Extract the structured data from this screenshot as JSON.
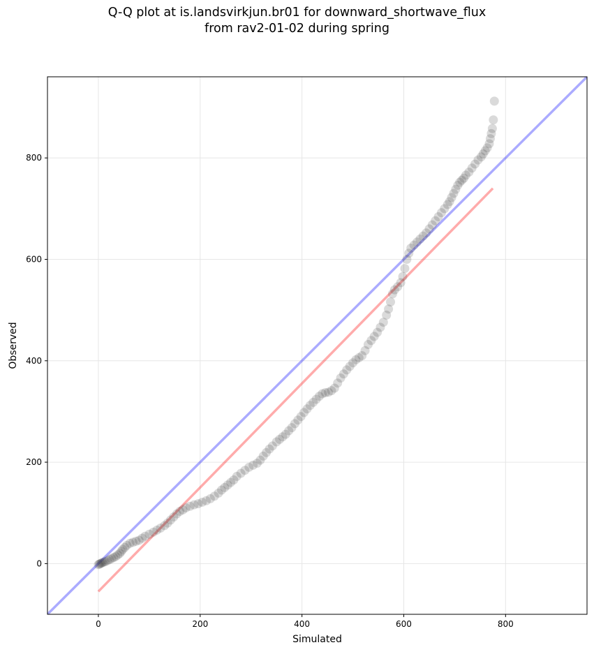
{
  "title_line1": "Q-Q plot at is.landsvirkjun.br01 for downward_shortwave_flux",
  "title_line2": "from rav2-01-02 during spring",
  "chart_data": {
    "type": "scatter",
    "xlabel": "Simulated",
    "ylabel": "Observed",
    "xlim": [
      -100,
      960
    ],
    "ylim": [
      -100,
      960
    ],
    "xticks": [
      "0",
      "200",
      "400",
      "600",
      "800"
    ],
    "yticks": [
      "0",
      "200",
      "400",
      "600",
      "800"
    ],
    "grid": true,
    "reference_lines": [
      {
        "name": "1:1 line",
        "color": "#0000ff",
        "x": [
          -100,
          960
        ],
        "y": [
          -100,
          960
        ]
      },
      {
        "name": "fit line",
        "color": "#ff0000",
        "x": [
          0,
          775
        ],
        "y": [
          -55,
          740
        ]
      }
    ],
    "marker_color": "#333333",
    "points": [
      [
        0,
        -2
      ],
      [
        2,
        -1
      ],
      [
        4,
        0
      ],
      [
        6,
        1
      ],
      [
        8,
        2
      ],
      [
        11,
        3
      ],
      [
        14,
        4
      ],
      [
        18,
        6
      ],
      [
        22,
        8
      ],
      [
        26,
        10
      ],
      [
        30,
        12
      ],
      [
        34,
        14
      ],
      [
        38,
        17
      ],
      [
        42,
        20
      ],
      [
        45,
        24
      ],
      [
        48,
        28
      ],
      [
        52,
        32
      ],
      [
        56,
        36
      ],
      [
        62,
        40
      ],
      [
        68,
        42
      ],
      [
        74,
        44
      ],
      [
        80,
        46
      ],
      [
        86,
        50
      ],
      [
        92,
        54
      ],
      [
        100,
        58
      ],
      [
        108,
        62
      ],
      [
        115,
        66
      ],
      [
        122,
        70
      ],
      [
        130,
        75
      ],
      [
        136,
        80
      ],
      [
        142,
        86
      ],
      [
        148,
        92
      ],
      [
        154,
        98
      ],
      [
        160,
        103
      ],
      [
        166,
        106
      ],
      [
        172,
        110
      ],
      [
        180,
        113
      ],
      [
        188,
        116
      ],
      [
        196,
        118
      ],
      [
        204,
        121
      ],
      [
        212,
        124
      ],
      [
        220,
        128
      ],
      [
        228,
        133
      ],
      [
        236,
        139
      ],
      [
        242,
        145
      ],
      [
        248,
        150
      ],
      [
        254,
        155
      ],
      [
        260,
        160
      ],
      [
        266,
        165
      ],
      [
        272,
        172
      ],
      [
        280,
        178
      ],
      [
        288,
        184
      ],
      [
        296,
        190
      ],
      [
        304,
        194
      ],
      [
        312,
        198
      ],
      [
        318,
        204
      ],
      [
        324,
        212
      ],
      [
        330,
        219
      ],
      [
        336,
        226
      ],
      [
        342,
        232
      ],
      [
        350,
        240
      ],
      [
        356,
        245
      ],
      [
        362,
        250
      ],
      [
        368,
        255
      ],
      [
        374,
        262
      ],
      [
        380,
        268
      ],
      [
        386,
        276
      ],
      [
        392,
        283
      ],
      [
        398,
        290
      ],
      [
        404,
        298
      ],
      [
        410,
        305
      ],
      [
        416,
        312
      ],
      [
        422,
        318
      ],
      [
        428,
        324
      ],
      [
        434,
        330
      ],
      [
        440,
        335
      ],
      [
        446,
        337
      ],
      [
        452,
        338
      ],
      [
        458,
        341
      ],
      [
        464,
        346
      ],
      [
        470,
        356
      ],
      [
        476,
        366
      ],
      [
        482,
        374
      ],
      [
        488,
        382
      ],
      [
        494,
        389
      ],
      [
        500,
        396
      ],
      [
        506,
        402
      ],
      [
        512,
        406
      ],
      [
        518,
        410
      ],
      [
        524,
        420
      ],
      [
        530,
        432
      ],
      [
        536,
        440
      ],
      [
        542,
        448
      ],
      [
        548,
        456
      ],
      [
        554,
        466
      ],
      [
        560,
        476
      ],
      [
        566,
        490
      ],
      [
        570,
        502
      ],
      [
        574,
        516
      ],
      [
        578,
        532
      ],
      [
        582,
        540
      ],
      [
        588,
        546
      ],
      [
        594,
        554
      ],
      [
        598,
        566
      ],
      [
        602,
        582
      ],
      [
        606,
        600
      ],
      [
        610,
        612
      ],
      [
        614,
        622
      ],
      [
        620,
        628
      ],
      [
        626,
        634
      ],
      [
        632,
        640
      ],
      [
        638,
        646
      ],
      [
        644,
        652
      ],
      [
        650,
        660
      ],
      [
        656,
        668
      ],
      [
        662,
        676
      ],
      [
        668,
        684
      ],
      [
        674,
        692
      ],
      [
        680,
        700
      ],
      [
        686,
        708
      ],
      [
        690,
        714
      ],
      [
        694,
        722
      ],
      [
        698,
        730
      ],
      [
        702,
        738
      ],
      [
        706,
        746
      ],
      [
        710,
        752
      ],
      [
        714,
        756
      ],
      [
        718,
        760
      ],
      [
        722,
        766
      ],
      [
        728,
        772
      ],
      [
        734,
        780
      ],
      [
        740,
        788
      ],
      [
        746,
        796
      ],
      [
        752,
        802
      ],
      [
        756,
        808
      ],
      [
        760,
        814
      ],
      [
        764,
        820
      ],
      [
        768,
        828
      ],
      [
        770,
        838
      ],
      [
        772,
        848
      ],
      [
        774,
        858
      ],
      [
        776,
        875
      ],
      [
        778,
        912
      ]
    ]
  }
}
